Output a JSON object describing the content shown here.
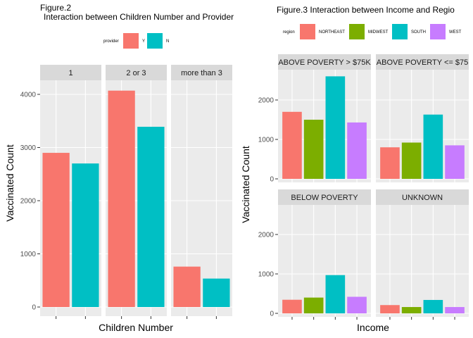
{
  "colors": {
    "panel_bg": "#EBEBEB",
    "grid_major": "#FFFFFF",
    "strip_bg": "#D9D9D9",
    "axis_text": "#4D4D4D",
    "tick": "#333333",
    "Y": "#F8766D",
    "N": "#00BFC4",
    "NORTHEAST": "#F8766D",
    "MIDWEST": "#7CAE00",
    "SOUTH": "#00BFC4",
    "WEST": "#C77CFF"
  },
  "chart_data": [
    {
      "type": "bar",
      "title": "Figure.2",
      "subtitle": "Interaction between Children Number and Provider",
      "xlabel": "Children Number",
      "ylabel": "Vaccinated Count",
      "legend_title": "provider",
      "legend_position": "top",
      "grid": true,
      "ylim": [
        0,
        4400
      ],
      "yticks": [
        0,
        1000,
        2000,
        3000,
        4000
      ],
      "yticks_labels": [
        "0",
        "1000",
        "2000",
        "3000",
        "4000"
      ],
      "categories": [
        "Y",
        "N"
      ],
      "facets": [
        {
          "label": "1",
          "series": [
            {
              "name": "Y",
              "value": 2900
            },
            {
              "name": "N",
              "value": 2700
            }
          ]
        },
        {
          "label": "2 or 3",
          "series": [
            {
              "name": "Y",
              "value": 4070
            },
            {
              "name": "N",
              "value": 3390
            }
          ]
        },
        {
          "label": "more than 3",
          "series": [
            {
              "name": "Y",
              "value": 760
            },
            {
              "name": "N",
              "value": 535
            }
          ]
        }
      ]
    },
    {
      "type": "bar",
      "title": "Figure.3 Interaction between Income and Regio",
      "xlabel": "Income",
      "ylabel": "Vaccinated Count",
      "legend_title": "region",
      "legend_position": "top",
      "grid": true,
      "ylim": [
        0,
        2700
      ],
      "yticks": [
        0,
        1000,
        2000
      ],
      "yticks_labels": [
        "0",
        "1000",
        "2000"
      ],
      "categories": [
        "NORTHEAST",
        "MIDWEST",
        "SOUTH",
        "WEST"
      ],
      "facets": [
        {
          "label": "ABOVE POVERTY > $75K",
          "series": [
            {
              "name": "NORTHEAST",
              "value": 1700
            },
            {
              "name": "MIDWEST",
              "value": 1500
            },
            {
              "name": "SOUTH",
              "value": 2600
            },
            {
              "name": "WEST",
              "value": 1430
            }
          ]
        },
        {
          "label": "ABOVE POVERTY <= $75",
          "series": [
            {
              "name": "NORTHEAST",
              "value": 800
            },
            {
              "name": "MIDWEST",
              "value": 920
            },
            {
              "name": "SOUTH",
              "value": 1630
            },
            {
              "name": "WEST",
              "value": 850
            }
          ]
        },
        {
          "label": "BELOW POVERTY",
          "series": [
            {
              "name": "NORTHEAST",
              "value": 345
            },
            {
              "name": "MIDWEST",
              "value": 400
            },
            {
              "name": "SOUTH",
              "value": 970
            },
            {
              "name": "WEST",
              "value": 420
            }
          ]
        },
        {
          "label": "UNKNOWN",
          "series": [
            {
              "name": "NORTHEAST",
              "value": 210
            },
            {
              "name": "MIDWEST",
              "value": 160
            },
            {
              "name": "SOUTH",
              "value": 340
            },
            {
              "name": "WEST",
              "value": 160
            }
          ]
        }
      ]
    }
  ]
}
